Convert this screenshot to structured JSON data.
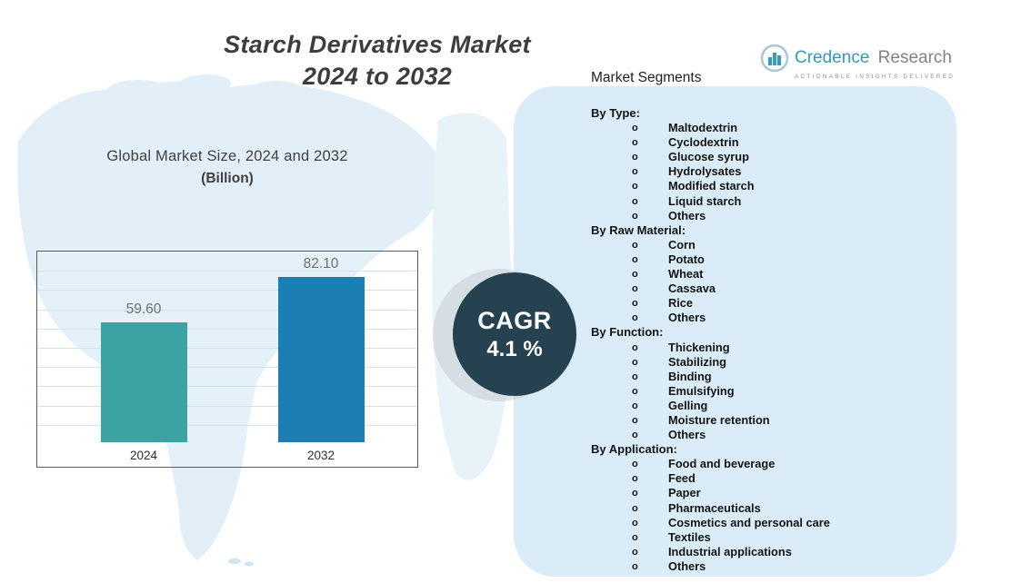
{
  "title": {
    "line1": "Starch Derivatives Market",
    "line2": "2024 to 2032"
  },
  "logo": {
    "name_primary": "Credence",
    "name_secondary": "Research",
    "tagline": "Actionable Insights Delivered"
  },
  "chart": {
    "heading": "Global Market Size, 2024 and 2032",
    "subheading": "(Billion)"
  },
  "chart_data": {
    "type": "bar",
    "title": "Global Market Size, 2024 and 2032 (Billion)",
    "categories": [
      "2024",
      "2032"
    ],
    "values": [
      59.6,
      82.1
    ],
    "value_labels": [
      "59.60",
      "82.10"
    ],
    "xlabel": "",
    "ylabel": "",
    "ylim": [
      0,
      90
    ],
    "grid": true,
    "legend": "none",
    "bar_colors": [
      "#3BA3A3",
      "#1B7FB3"
    ]
  },
  "cagr": {
    "label": "CAGR",
    "value": "4.1 %"
  },
  "segments": {
    "heading": "Market Segments",
    "bullet": "o",
    "groups": [
      {
        "label": "By Type:",
        "items": [
          "Maltodextrin",
          "Cyclodextrin",
          "Glucose syrup",
          "Hydrolysates",
          "Modified starch",
          "Liquid starch",
          "Others"
        ]
      },
      {
        "label": "By Raw Material:",
        "items": [
          "Corn",
          "Potato",
          "Wheat",
          "Cassava",
          "Rice",
          "Others"
        ]
      },
      {
        "label": "By Function:",
        "items": [
          "Thickening",
          "Stabilizing",
          "Binding",
          "Emulsifying",
          "Gelling",
          "Moisture retention",
          "Others"
        ]
      },
      {
        "label": "By Application:",
        "items": [
          "Food and beverage",
          "Feed",
          "Paper",
          "Pharmaceuticals",
          "Cosmetics and personal care",
          "Textiles",
          "Industrial applications",
          "Others"
        ]
      }
    ]
  },
  "colors": {
    "bar_2024": "#3BA3A3",
    "bar_2032": "#1B7FB3",
    "cagr_circle": "#26414F",
    "panel_bg": "#D9ECF7",
    "map_fill": "#E2EFF8",
    "brand_blue": "#2B9CC7",
    "brand_gray": "#7D8488"
  }
}
